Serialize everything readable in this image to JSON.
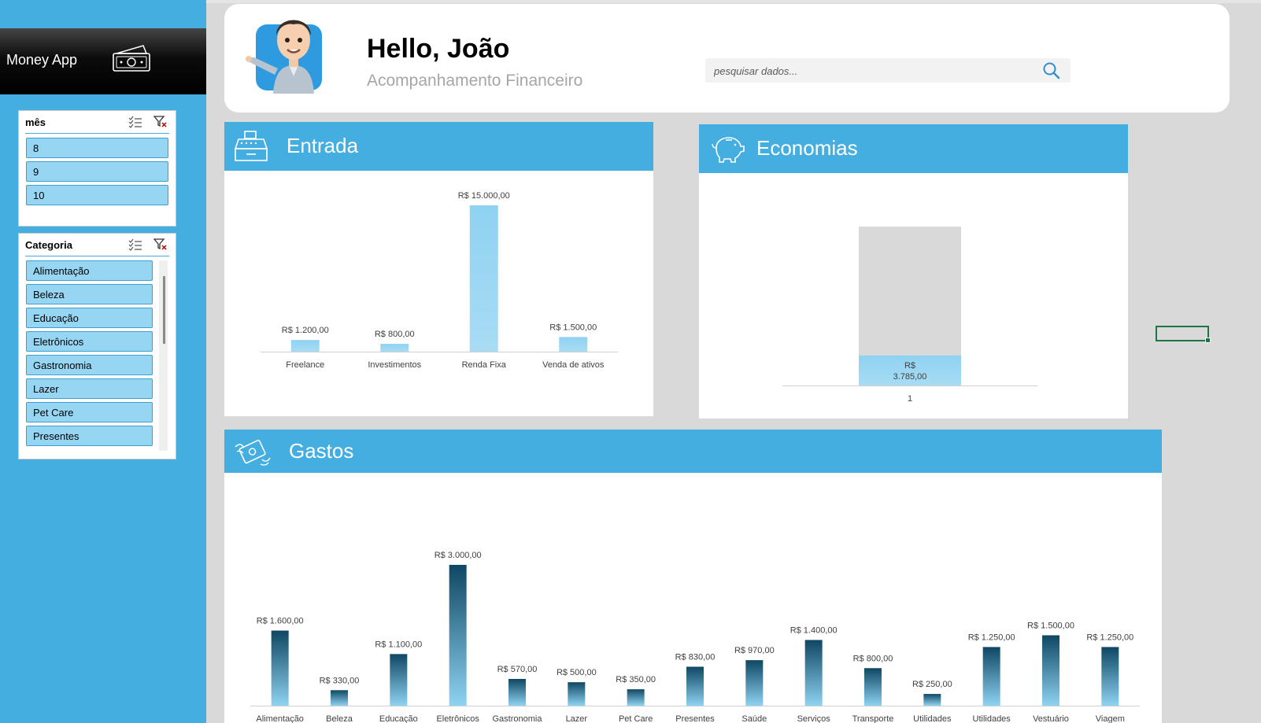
{
  "app": {
    "name": "Money App"
  },
  "header": {
    "greeting": "Hello, João",
    "subtitle": "Acompanhamento Financeiro",
    "search_placeholder": "pesquisar dados..."
  },
  "slicers": {
    "month": {
      "title": "mês",
      "items": [
        "8",
        "9",
        "10"
      ]
    },
    "category": {
      "title": "Categoria",
      "items": [
        "Alimentação",
        "Beleza",
        "Educação",
        "Eletrônicos",
        "Gastronomia",
        "Lazer",
        "Pet Care",
        "Presentes"
      ]
    }
  },
  "panels": {
    "entrada": "Entrada",
    "economias": "Economias",
    "gastos": "Gastos"
  },
  "colors": {
    "accent": "#45aee0",
    "slicer_item": "#97d6f3",
    "bar_light": "#8fd2f2",
    "bar_dark": "#0e4763"
  },
  "chart_data": [
    {
      "type": "bar",
      "title": "Entrada",
      "categories": [
        "Freelance",
        "Investimentos",
        "Renda Fixa",
        "Venda de ativos"
      ],
      "values": [
        1200,
        800,
        15000,
        1500
      ],
      "labels": [
        "R$ 1.200,00",
        "R$ 800,00",
        "R$ 15.000,00",
        "R$ 1.500,00"
      ],
      "ylim": [
        0,
        15000
      ]
    },
    {
      "type": "bar",
      "title": "Economias",
      "categories": [
        "1"
      ],
      "values": [
        3785
      ],
      "labels": [
        "R$\n3.785,00"
      ],
      "ylim": [
        0,
        20000
      ]
    },
    {
      "type": "bar",
      "title": "Gastos",
      "categories": [
        "Alimentação",
        "Beleza",
        "Educação",
        "Eletrônicos",
        "Gastronomia",
        "Lazer",
        "Pet Care",
        "Presentes",
        "Saúde",
        "Serviços",
        "Transporte",
        "Utilidades\nDom.",
        "Utilidades\nDomésticas",
        "Vestuário",
        "Viagem"
      ],
      "values": [
        1600,
        330,
        1100,
        3000,
        570,
        500,
        350,
        830,
        970,
        1400,
        800,
        250,
        1250,
        1500,
        1250
      ],
      "labels": [
        "R$ 1.600,00",
        "R$ 330,00",
        "R$ 1.100,00",
        "R$ 3.000,00",
        "R$ 570,00",
        "R$ 500,00",
        "R$ 350,00",
        "R$ 830,00",
        "R$ 970,00",
        "R$ 1.400,00",
        "R$ 800,00",
        "R$ 250,00",
        "R$ 1.250,00",
        "R$ 1.500,00",
        "R$ 1.250,00"
      ],
      "ylim": [
        0,
        3000
      ]
    }
  ]
}
